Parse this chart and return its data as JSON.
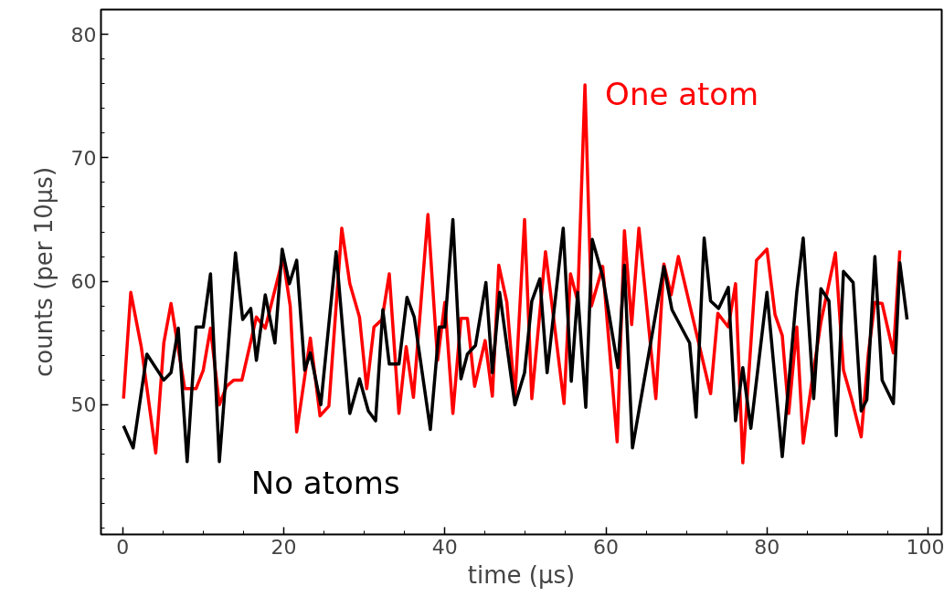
{
  "chart_data": {
    "type": "line",
    "xlabel": "time (µs)",
    "ylabel": "counts (per 10µs)",
    "xlim": [
      -2.7,
      101.7
    ],
    "ylim": [
      39.5,
      82
    ],
    "xticks": [
      0,
      20,
      40,
      60,
      80,
      100
    ],
    "yticks": [
      50,
      60,
      70,
      80
    ],
    "grid": false,
    "marker": "none",
    "line_style": "solid",
    "series": [
      {
        "name": "One atom",
        "color": "#ff0000",
        "x": [
          0.1,
          1.0,
          2.3,
          4.1,
          5.1,
          6.0,
          7.7,
          9.1,
          10.0,
          10.9,
          12.0,
          12.9,
          13.8,
          14.8,
          16.6,
          17.7,
          19.9,
          20.8,
          21.6,
          23.3,
          24.5,
          25.6,
          27.2,
          28.2,
          29.4,
          30.3,
          31.2,
          32.2,
          33.1,
          34.3,
          35.2,
          36.1,
          37.9,
          39.1,
          40.0,
          41.0,
          42.0,
          42.8,
          43.7,
          45.0,
          45.9,
          46.7,
          47.7,
          48.7,
          49.9,
          50.8,
          52.5,
          54.8,
          55.6,
          56.5,
          57.4,
          58.2,
          59.6,
          61.4,
          62.3,
          63.2,
          64.1,
          66.2,
          67.2,
          68.1,
          69.0,
          73.0,
          73.9,
          75.2,
          76.1,
          77.0,
          78.7,
          80.0,
          81.0,
          81.9,
          82.7,
          83.7,
          84.5,
          85.5,
          86.7,
          88.5,
          89.5,
          90.5,
          91.7,
          92.6,
          93.4,
          94.3,
          95.7,
          96.5
        ],
        "values": [
          50.5,
          59.1,
          54.7,
          46.1,
          55.0,
          58.2,
          51.3,
          51.3,
          52.8,
          56.2,
          50.0,
          51.5,
          52.0,
          52.0,
          57.1,
          56.2,
          61.9,
          58.0,
          47.8,
          55.4,
          49.1,
          49.9,
          64.3,
          59.8,
          57.1,
          51.3,
          56.3,
          56.9,
          60.6,
          49.3,
          54.7,
          50.6,
          65.4,
          53.6,
          58.3,
          49.3,
          57.0,
          57.0,
          51.5,
          55.2,
          50.7,
          61.3,
          58.3,
          50.5,
          65.0,
          50.5,
          62.4,
          50.1,
          60.6,
          58.4,
          75.9,
          58.0,
          61.2,
          47.0,
          64.1,
          56.5,
          64.3,
          50.5,
          61.4,
          58.9,
          62.0,
          50.9,
          57.4,
          56.3,
          59.8,
          45.3,
          61.7,
          62.6,
          57.3,
          55.6,
          49.3,
          56.3,
          46.9,
          51.5,
          56.7,
          62.3,
          52.8,
          50.5,
          47.4,
          54.2,
          58.3,
          58.2,
          54.2,
          62.5
        ]
      },
      {
        "name": "No atoms",
        "color": "#000000",
        "x": [
          0.1,
          1.3,
          3.0,
          5.1,
          6.0,
          6.9,
          8.0,
          9.1,
          10.0,
          10.9,
          12.0,
          14.0,
          14.9,
          15.9,
          16.6,
          17.7,
          18.9,
          19.8,
          20.7,
          21.6,
          22.6,
          23.3,
          24.6,
          26.5,
          28.2,
          29.4,
          30.5,
          31.4,
          32.3,
          33.1,
          34.3,
          35.3,
          36.2,
          38.2,
          39.3,
          40.0,
          41.0,
          42.0,
          42.8,
          43.8,
          45.1,
          45.9,
          46.8,
          48.7,
          49.9,
          50.8,
          51.8,
          52.7,
          54.7,
          55.7,
          56.5,
          57.5,
          58.3,
          59.6,
          61.5,
          62.3,
          63.3,
          67.2,
          68.2,
          70.4,
          71.2,
          72.2,
          73.0,
          74.0,
          75.2,
          76.1,
          77.0,
          78.0,
          80.0,
          81.9,
          83.7,
          84.5,
          85.8,
          86.7,
          87.7,
          88.6,
          89.5,
          90.7,
          91.7,
          92.4,
          93.4,
          94.3,
          95.7,
          96.5,
          97.4
        ],
        "values": [
          48.3,
          46.5,
          54.1,
          52.0,
          52.6,
          56.2,
          45.4,
          56.3,
          56.3,
          60.6,
          45.4,
          62.3,
          56.9,
          57.8,
          53.6,
          58.9,
          55.0,
          62.6,
          59.8,
          61.7,
          52.8,
          54.2,
          50.0,
          62.4,
          49.3,
          52.1,
          49.5,
          48.7,
          57.7,
          53.3,
          53.3,
          58.7,
          57.1,
          48.0,
          56.3,
          56.3,
          65.0,
          52.1,
          54.1,
          54.8,
          59.9,
          52.6,
          59.1,
          50.0,
          52.6,
          58.4,
          60.2,
          52.6,
          64.3,
          51.9,
          59.1,
          49.8,
          63.4,
          60.4,
          53.0,
          61.3,
          46.5,
          61.2,
          57.7,
          55.0,
          49.0,
          63.5,
          58.4,
          57.8,
          59.5,
          48.7,
          53.0,
          48.1,
          59.1,
          45.8,
          59.1,
          63.5,
          50.5,
          59.4,
          58.4,
          47.5,
          60.8,
          59.9,
          49.5,
          50.4,
          62.0,
          52.0,
          50.1,
          61.5,
          56.9
        ]
      }
    ]
  }
}
